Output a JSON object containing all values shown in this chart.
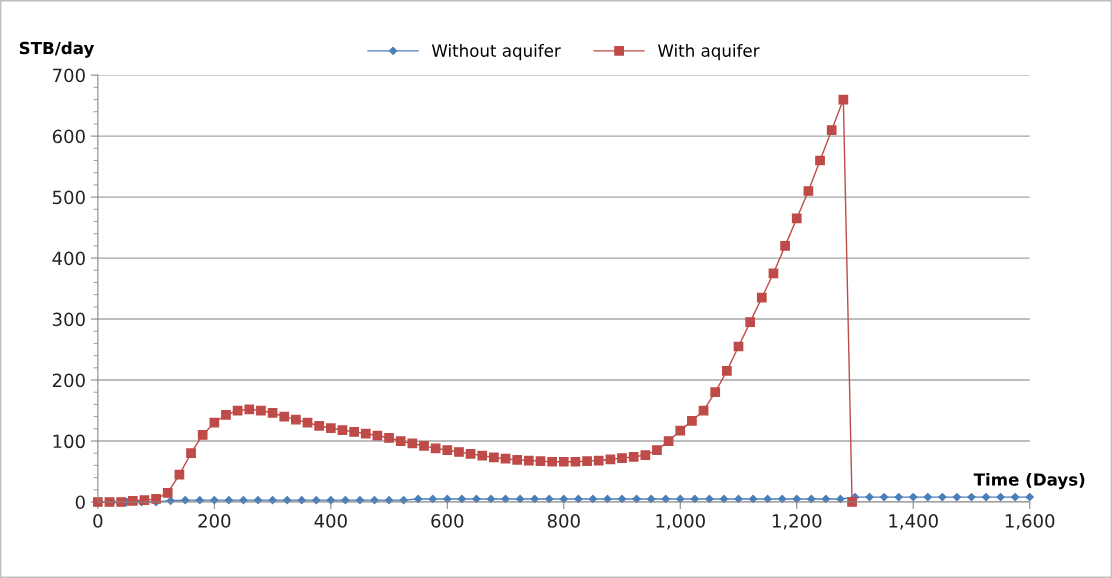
{
  "chart_data": {
    "type": "line",
    "ylabel": "STB/day",
    "xlabel": "Time (Days)",
    "xlim": [
      0,
      1600
    ],
    "xticks": [
      0,
      200,
      400,
      600,
      800,
      {
        "value": 1000,
        "label": "1,000"
      },
      {
        "value": 1200,
        "label": "1,200"
      },
      {
        "value": 1400,
        "label": "1,400"
      },
      {
        "value": 1600,
        "label": "1,600"
      }
    ],
    "ylim": [
      0,
      700
    ],
    "yticks": [
      0,
      100,
      200,
      300,
      400,
      500,
      600,
      700
    ],
    "grid": "y",
    "legend": "top",
    "series": [
      {
        "name": "Without aquifer",
        "color": "#4a7ebb",
        "marker": "diamond",
        "x": [
          0,
          25,
          50,
          75,
          100,
          125,
          150,
          175,
          200,
          225,
          250,
          275,
          300,
          325,
          350,
          375,
          400,
          425,
          450,
          475,
          500,
          525,
          550,
          575,
          600,
          625,
          650,
          675,
          700,
          725,
          750,
          775,
          800,
          825,
          850,
          875,
          900,
          925,
          950,
          975,
          1000,
          1025,
          1050,
          1075,
          1100,
          1125,
          1150,
          1175,
          1200,
          1225,
          1250,
          1275,
          1300,
          1325,
          1350,
          1375,
          1400,
          1425,
          1450,
          1475,
          1500,
          1525,
          1550,
          1575,
          1600
        ],
        "values": [
          0,
          0,
          0,
          0,
          0,
          2,
          3,
          3,
          3,
          3,
          3,
          3,
          3,
          3,
          3,
          3,
          3,
          3,
          3,
          3,
          3,
          3,
          5,
          5,
          5,
          5,
          5,
          5,
          5,
          5,
          5,
          5,
          5,
          5,
          5,
          5,
          5,
          5,
          5,
          5,
          5,
          5,
          5,
          5,
          5,
          5,
          5,
          5,
          5,
          5,
          5,
          5,
          8,
          8,
          8,
          8,
          8,
          8,
          8,
          8,
          8,
          8,
          8,
          8,
          8
        ]
      },
      {
        "name": "With aquifer",
        "color": "#be4b48",
        "marker": "square",
        "x": [
          0,
          20,
          40,
          60,
          80,
          100,
          120,
          140,
          160,
          180,
          200,
          220,
          240,
          260,
          280,
          300,
          320,
          340,
          360,
          380,
          400,
          420,
          440,
          460,
          480,
          500,
          520,
          540,
          560,
          580,
          600,
          620,
          640,
          660,
          680,
          700,
          720,
          740,
          760,
          780,
          800,
          820,
          840,
          860,
          880,
          900,
          920,
          940,
          960,
          980,
          1000,
          1020,
          1040,
          1060,
          1080,
          1100,
          1120,
          1140,
          1160,
          1180,
          1200,
          1220,
          1240,
          1260,
          1280,
          1295
        ],
        "values": [
          0,
          0,
          0,
          2,
          3,
          5,
          15,
          45,
          80,
          110,
          130,
          143,
          150,
          152,
          150,
          146,
          140,
          135,
          130,
          125,
          121,
          118,
          115,
          112,
          109,
          105,
          100,
          96,
          92,
          88,
          85,
          82,
          79,
          76,
          73,
          71,
          69,
          68,
          67,
          66,
          66,
          66,
          67,
          68,
          70,
          72,
          74,
          77,
          85,
          100,
          117,
          133,
          150,
          180,
          215,
          255,
          295,
          335,
          375,
          420,
          465,
          510,
          560,
          610,
          660,
          0
        ]
      }
    ]
  }
}
